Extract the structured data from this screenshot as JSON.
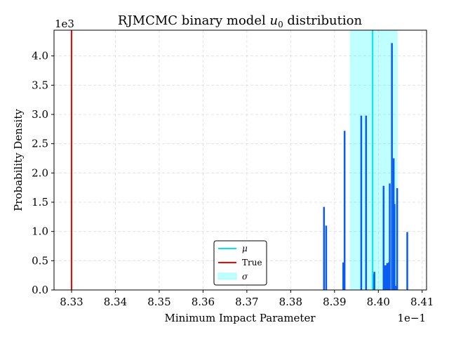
{
  "chart_data": {
    "type": "histogram",
    "title_main": "RJMCMC binary model ",
    "title_var": "u",
    "title_sub": "0",
    "title_tail": " distribution",
    "xlabel": "Minimum Impact Parameter",
    "ylabel": "Probability Density",
    "x_offset_label": "1e−1",
    "y_offset_label": "1e3",
    "xlim": [
      8.326,
      8.411
    ],
    "ylim": [
      0,
      4.44
    ],
    "x_ticks": [
      8.33,
      8.34,
      8.35,
      8.36,
      8.37,
      8.38,
      8.39,
      8.4,
      8.41
    ],
    "x_tick_labels": [
      "8.33",
      "8.34",
      "8.35",
      "8.36",
      "8.37",
      "8.38",
      "8.39",
      "8.40",
      "8.41"
    ],
    "y_ticks": [
      0,
      0.5,
      1.0,
      1.5,
      2.0,
      2.5,
      3.0,
      3.5,
      4.0
    ],
    "y_tick_labels": [
      "0.0",
      "0.5",
      "1.0",
      "1.5",
      "2.0",
      "2.5",
      "3.0",
      "3.5",
      "4.0"
    ],
    "grid": true,
    "bin_width": 0.0003,
    "bars": [
      {
        "x": 8.3876,
        "y": 1.42
      },
      {
        "x": 8.3881,
        "y": 1.1
      },
      {
        "x": 8.392,
        "y": 0.47
      },
      {
        "x": 8.3923,
        "y": 2.72
      },
      {
        "x": 8.3961,
        "y": 2.98
      },
      {
        "x": 8.3972,
        "y": 2.98
      },
      {
        "x": 8.3988,
        "y": 0.27
      },
      {
        "x": 8.3991,
        "y": 0.31
      },
      {
        "x": 8.4012,
        "y": 1.78
      },
      {
        "x": 8.4016,
        "y": 0.42
      },
      {
        "x": 8.402,
        "y": 0.46
      },
      {
        "x": 8.4024,
        "y": 0.47
      },
      {
        "x": 8.4026,
        "y": 1.82
      },
      {
        "x": 8.4031,
        "y": 4.22
      },
      {
        "x": 8.4035,
        "y": 2.25
      },
      {
        "x": 8.4037,
        "y": 1.47
      },
      {
        "x": 8.4039,
        "y": 0.07
      },
      {
        "x": 8.4043,
        "y": 1.74
      },
      {
        "x": 8.4066,
        "y": 0.99
      }
    ],
    "mu": 8.3987,
    "sigma_range": [
      8.3935,
      8.4044
    ],
    "true_value": 8.33,
    "bar_color": "#0a5bf0",
    "mu_color": "#00e5ee",
    "sigma_color": "#00ffff",
    "true_color": "#ff0000",
    "legend": [
      {
        "label": "μ",
        "kind": "line",
        "color": "#00e5ee"
      },
      {
        "label": "True",
        "kind": "line",
        "color": "#ff0000"
      },
      {
        "label": "σ",
        "kind": "patch",
        "color": "#00ffff"
      }
    ],
    "legend_loc": "lower center"
  }
}
